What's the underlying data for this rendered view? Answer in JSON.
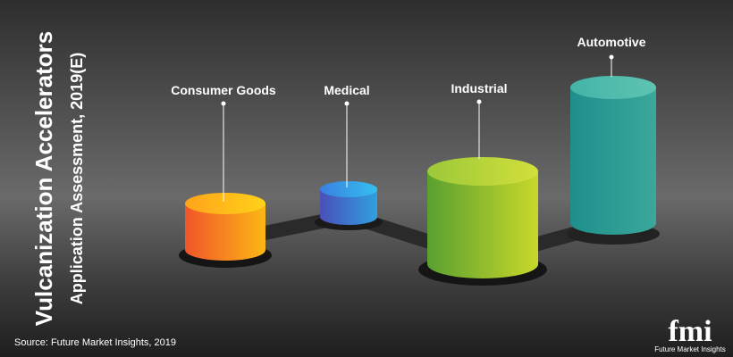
{
  "title": "Vulcanization Accelerators",
  "subtitle": "Application Assessment, 2019(E)",
  "items": [
    {
      "label": "Consumer Goods"
    },
    {
      "label": "Medical"
    },
    {
      "label": "Industrial"
    },
    {
      "label": "Automotive"
    }
  ],
  "source": "Source: Future Market Insights, 2019",
  "logo": {
    "mark": "fmi",
    "name": "Future Market Insights"
  }
}
